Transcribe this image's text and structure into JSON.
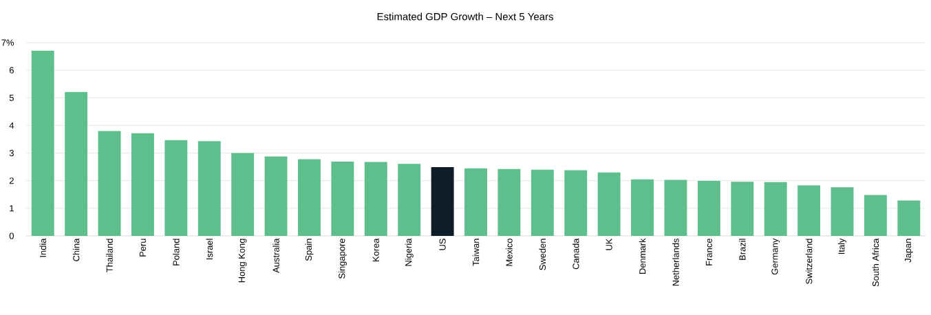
{
  "chart_data": {
    "type": "bar",
    "title": "Estimated GDP Growth – Next 5 Years",
    "categories": [
      "India",
      "China",
      "Thailand",
      "Peru",
      "Poland",
      "Israel",
      "Hong Kong",
      "Australia",
      "Spain",
      "Singapore",
      "Korea",
      "Nigeria",
      "US",
      "Taiwan",
      "Mexico",
      "Sweden",
      "Canada",
      "UK",
      "Denmark",
      "Netherlands",
      "France",
      "Brazil",
      "Germany",
      "Switzerland",
      "Italy",
      "South Africa",
      "Japan"
    ],
    "values": [
      6.71,
      5.21,
      3.8,
      3.72,
      3.47,
      3.43,
      3.0,
      2.88,
      2.78,
      2.69,
      2.68,
      2.61,
      2.49,
      2.45,
      2.42,
      2.4,
      2.38,
      2.3,
      2.05,
      2.03,
      1.99,
      1.96,
      1.95,
      1.83,
      1.76,
      1.48,
      1.28
    ],
    "colors": [
      "#5fbf8c",
      "#5fbf8c",
      "#5fbf8c",
      "#5fbf8c",
      "#5fbf8c",
      "#5fbf8c",
      "#5fbf8c",
      "#5fbf8c",
      "#5fbf8c",
      "#5fbf8c",
      "#5fbf8c",
      "#5fbf8c",
      "#0e1b28",
      "#5fbf8c",
      "#5fbf8c",
      "#5fbf8c",
      "#5fbf8c",
      "#5fbf8c",
      "#5fbf8c",
      "#5fbf8c",
      "#5fbf8c",
      "#5fbf8c",
      "#5fbf8c",
      "#5fbf8c",
      "#5fbf8c",
      "#5fbf8c",
      "#5fbf8c"
    ],
    "ylim": [
      0,
      7
    ],
    "yticks": [
      0,
      1,
      2,
      3,
      4,
      5,
      6,
      {
        "value": 7,
        "label": "7%"
      }
    ],
    "grid": "y"
  }
}
